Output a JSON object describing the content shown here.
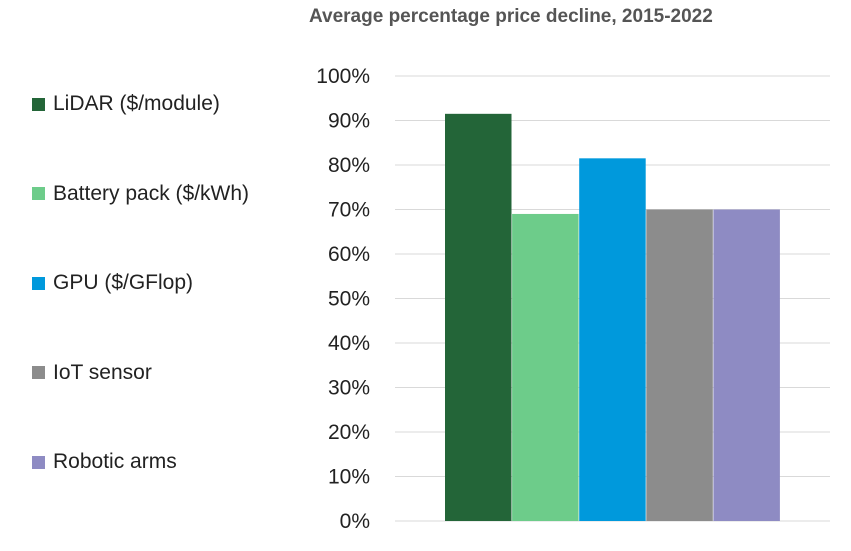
{
  "chart_data": {
    "type": "bar",
    "title": "Average percentage price decline, 2015-2022",
    "xlabel": "",
    "ylabel": "",
    "ylim": [
      0,
      100
    ],
    "yticks": [
      "0%",
      "10%",
      "20%",
      "30%",
      "40%",
      "50%",
      "60%",
      "70%",
      "80%",
      "90%",
      "100%"
    ],
    "grid": true,
    "legend_position": "left",
    "series": [
      {
        "name": "LiDAR ($/module)",
        "value": 91.5,
        "color": "#236538"
      },
      {
        "name": "Battery pack ($/kWh)",
        "value": 69,
        "color": "#6dcc8a"
      },
      {
        "name": "GPU ($/GFlop)",
        "value": 81.5,
        "color": "#0099dc"
      },
      {
        "name": "IoT sensor",
        "value": 70,
        "color": "#8c8c8c"
      },
      {
        "name": "Robotic arms",
        "value": 70,
        "color": "#8e8bc3"
      }
    ]
  }
}
